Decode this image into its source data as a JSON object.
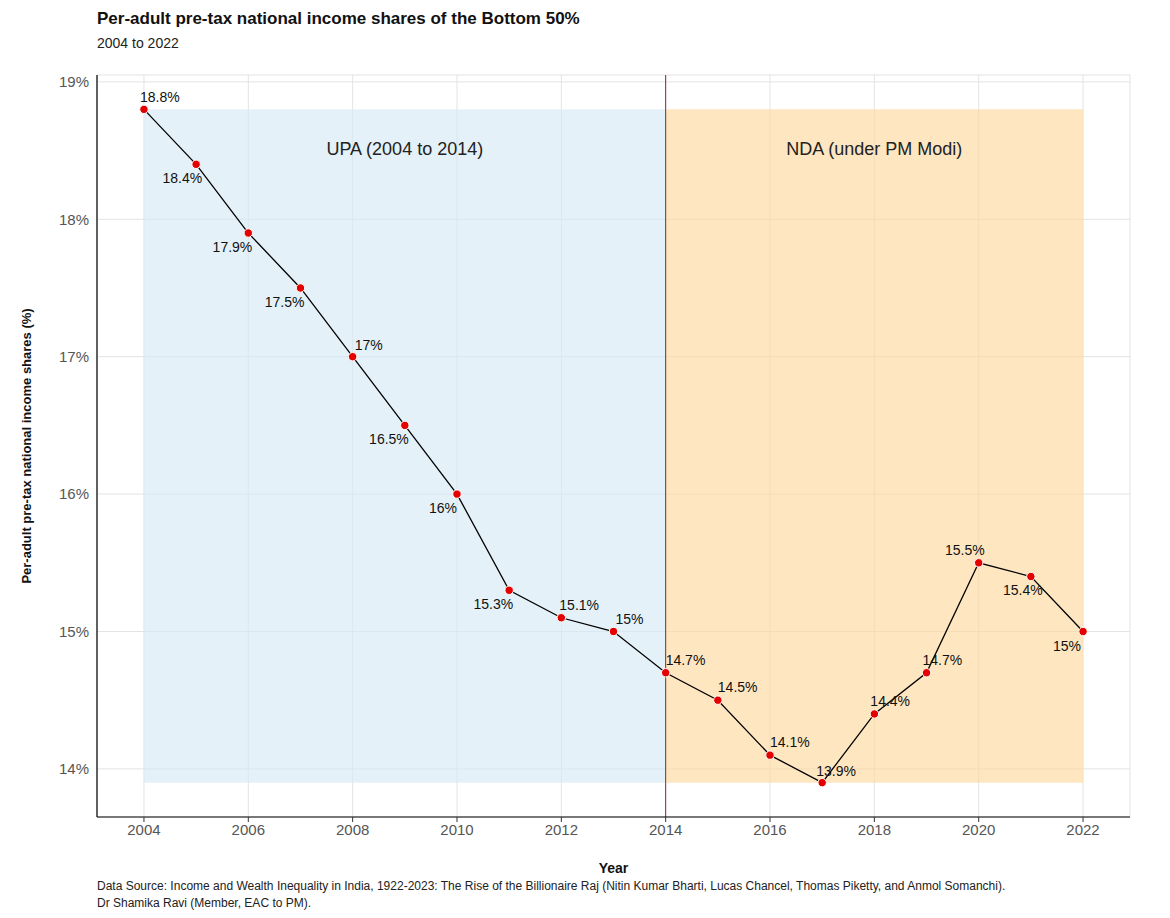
{
  "chart_data": {
    "type": "line",
    "title": "Per-adult pre-tax national income shares of the Bottom 50%",
    "subtitle": "2004 to 2022",
    "x_label": "Year",
    "y_label": "Per-adult pre-tax national income shares (%)",
    "x": [
      2004,
      2005,
      2006,
      2007,
      2008,
      2009,
      2010,
      2011,
      2012,
      2013,
      2014,
      2015,
      2016,
      2017,
      2018,
      2019,
      2020,
      2021,
      2022
    ],
    "values": [
      18.8,
      18.4,
      17.9,
      17.5,
      17,
      16.5,
      16,
      15.3,
      15.1,
      15,
      14.7,
      14.5,
      14.1,
      13.9,
      14.4,
      14.7,
      15.5,
      15.4,
      15
    ],
    "value_labels": [
      "18.8%",
      "18.4%",
      "17.9%",
      "17.5%",
      "17%",
      "16.5%",
      "16%",
      "15.3%",
      "15.1%",
      "15%",
      "14.7%",
      "14.5%",
      "14.1%",
      "13.9%",
      "14.4%",
      "14.7%",
      "15.5%",
      "15.4%",
      "15%"
    ],
    "color": "#000000",
    "marker": "circle",
    "data_labels": true,
    "xlim": [
      2003.1,
      2022.9
    ],
    "xticks": [
      2004,
      2006,
      2008,
      2010,
      2012,
      2014,
      2016,
      2018,
      2020,
      2022
    ],
    "ylim": [
      13.65,
      19.05
    ],
    "yticks": [
      {
        "value": 14,
        "label": "14%"
      },
      {
        "value": 15,
        "label": "15%"
      },
      {
        "value": 16,
        "label": "16%"
      },
      {
        "value": 17,
        "label": "17%"
      },
      {
        "value": 18,
        "label": "18%"
      },
      {
        "value": 19,
        "label": "19%"
      }
    ],
    "grid": true,
    "regions": [
      {
        "label": "UPA (2004 to 2014)",
        "x": [
          2004,
          2014
        ],
        "y": [
          13.9,
          18.8
        ],
        "color": "#d6eaf5"
      },
      {
        "label": "NDA (under PM Modi)",
        "x": [
          2014,
          2022
        ],
        "y": [
          13.9,
          18.8
        ],
        "color": "#fdd9a0"
      }
    ],
    "vline": {
      "x": 2014,
      "color": "#8b2a2a"
    },
    "source": [
      "Data Source: Income and Wealth Inequality in India, 1922-2023: The Rise of the Billionaire Raj (Nitin Kumar Bharti, Lucas Chancel, Thomas Piketty, and Anmol Somanchi).",
      "Dr Shamika Ravi (Member, EAC to PM)."
    ]
  }
}
